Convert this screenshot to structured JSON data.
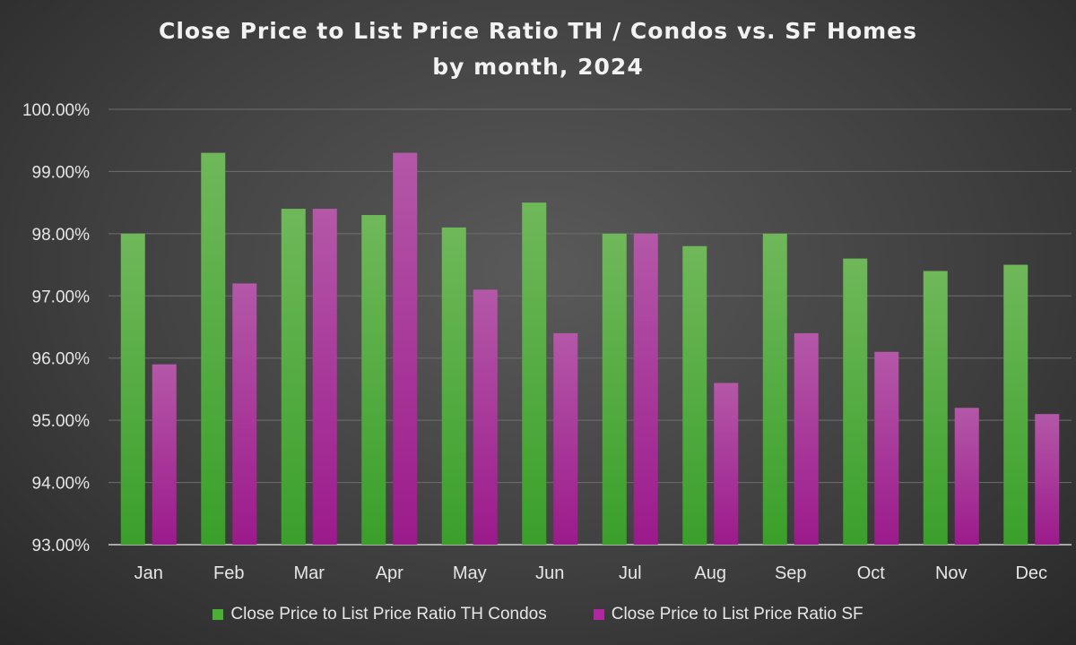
{
  "chart_data": {
    "type": "bar",
    "title_lines": [
      "Close Price to List Price Ratio TH / Condos vs. SF Homes",
      "by month, 2024"
    ],
    "categories": [
      "Jan",
      "Feb",
      "Mar",
      "Apr",
      "May",
      "Jun",
      "Jul",
      "Aug",
      "Sep",
      "Oct",
      "Nov",
      "Dec"
    ],
    "series": [
      {
        "name": "Close Price to List Price Ratio TH Condos",
        "color": "#4caf35",
        "values": [
          98.0,
          99.3,
          98.4,
          98.3,
          98.1,
          98.5,
          98.0,
          97.8,
          98.0,
          97.6,
          97.4,
          97.5
        ]
      },
      {
        "name": "Close Price to List Price Ratio SF",
        "color": "#b0279f",
        "values": [
          95.9,
          97.2,
          98.4,
          99.3,
          97.1,
          96.4,
          98.0,
          95.6,
          96.4,
          96.1,
          95.2,
          95.1
        ]
      }
    ],
    "ylim": [
      93.0,
      100.0
    ],
    "yticks": [
      93.0,
      94.0,
      95.0,
      96.0,
      97.0,
      98.0,
      99.0,
      100.0
    ],
    "ytick_labels": [
      "93.00%",
      "94.00%",
      "95.00%",
      "96.00%",
      "97.00%",
      "98.00%",
      "99.00%",
      "100.00%"
    ],
    "grid": true,
    "legend_position": "bottom",
    "xlabel": "",
    "ylabel": ""
  }
}
